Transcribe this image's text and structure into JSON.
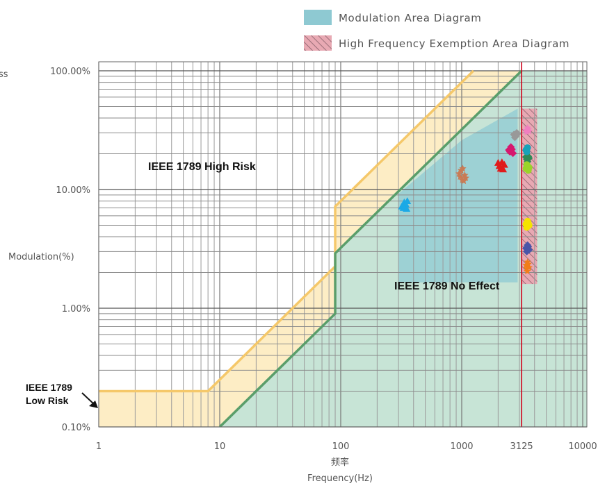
{
  "chart_data": {
    "type": "scatter",
    "xscale": "log",
    "yscale": "log",
    "xlim": [
      1,
      20000
    ],
    "ylim": [
      0.1,
      100
    ],
    "grid": true,
    "xlabel": "频率",
    "xlabel_en": "Frequency(Hz)",
    "ylabel": "Modulation(%)",
    "x_ticks": [
      {
        "value": 1,
        "label": "1"
      },
      {
        "value": 10,
        "label": "10"
      },
      {
        "value": 100,
        "label": "100"
      },
      {
        "value": 1000,
        "label": "1000"
      },
      {
        "value": 3125,
        "label": "3125",
        "color": "#d0021b"
      },
      {
        "value": 10000,
        "label": "10000"
      }
    ],
    "y_ticks": [
      {
        "value": 0.1,
        "label": "0.10%"
      },
      {
        "value": 1,
        "label": "1.00%"
      },
      {
        "value": 10,
        "label": "10.00%"
      },
      {
        "value": 100,
        "label": "100.00%"
      }
    ],
    "legend": [
      {
        "label": "Modulation Area Diagram",
        "color": "#8ec9d2",
        "style": "solid"
      },
      {
        "label": "High Frequency Exemption Area Diagram",
        "color": "#e8a9b3",
        "style": "hatched"
      }
    ],
    "legend_position": "top-right",
    "annotations": {
      "high_risk": "IEEE 1789 High Risk",
      "no_effect": "IEEE 1789 No Effect",
      "low_risk_line1": "IEEE 1789",
      "low_risk_line2": "Low Risk",
      "cut_top_right": "ss"
    },
    "boundaries": {
      "low_risk_line": {
        "color": "#f5c86a",
        "points": [
          [
            1,
            0.2
          ],
          [
            8,
            0.2
          ],
          [
            90,
            2.25
          ],
          [
            90,
            7.2
          ],
          [
            1250,
            100
          ]
        ]
      },
      "no_effect_line": {
        "color": "#5a9e6a",
        "points": [
          [
            10,
            0.1
          ],
          [
            90,
            0.9
          ],
          [
            90,
            2.9
          ],
          [
            3125,
            100
          ]
        ]
      },
      "exemption_frequency": {
        "value": 3125,
        "color": "#d0021b"
      }
    },
    "series": [
      {
        "color": "#1ba9e6",
        "marker": "triangle",
        "points": [
          [
            320,
            7.2
          ],
          [
            335,
            7.8
          ],
          [
            345,
            7.5
          ],
          [
            355,
            8.0
          ],
          [
            330,
            7.0
          ],
          [
            350,
            6.9
          ]
        ]
      },
      {
        "color": "#c97b55",
        "marker": "star",
        "points": [
          [
            970,
            12.8
          ],
          [
            1010,
            12.0
          ],
          [
            1060,
            13.2
          ],
          [
            990,
            14.5
          ],
          [
            1040,
            11.8
          ],
          [
            950,
            13.6
          ],
          [
            1020,
            15.0
          ],
          [
            1080,
            12.5
          ]
        ]
      },
      {
        "color": "#e01b1b",
        "marker": "triangle",
        "points": [
          [
            2050,
            15.8
          ],
          [
            2150,
            17.0
          ],
          [
            2250,
            16.2
          ],
          [
            2100,
            15.0
          ],
          [
            2200,
            14.8
          ],
          [
            2000,
            16.8
          ]
        ]
      },
      {
        "color": "#d6176e",
        "marker": "diamond",
        "points": [
          [
            2500,
            20.8
          ],
          [
            2600,
            21.8
          ],
          [
            2550,
            22.8
          ],
          [
            2650,
            20.2
          ],
          [
            2450,
            21.5
          ]
        ]
      },
      {
        "color": "#999999",
        "marker": "diamond",
        "points": [
          [
            2700,
            29.0
          ],
          [
            2800,
            28.2
          ],
          [
            2900,
            29.5
          ],
          [
            2750,
            27.5
          ],
          [
            2850,
            30.0
          ]
        ]
      },
      {
        "color": "#f07fc0",
        "marker": "star",
        "points": [
          [
            3400,
            31.5
          ],
          [
            3500,
            33.0
          ],
          [
            3450,
            30.5
          ],
          [
            3550,
            32.0
          ],
          [
            3600,
            31.0
          ]
        ]
      },
      {
        "color": "#2e8b57",
        "marker": "diamond",
        "points": [
          [
            3450,
            18.0
          ],
          [
            3550,
            19.0
          ],
          [
            3500,
            17.2
          ],
          [
            3600,
            18.4
          ],
          [
            3400,
            18.8
          ]
        ]
      },
      {
        "color": "#17a2b8",
        "marker": "circle",
        "points": [
          [
            3400,
            21.5
          ],
          [
            3500,
            22.5
          ],
          [
            3450,
            20.8
          ]
        ]
      },
      {
        "color": "#9ad32a",
        "marker": "circle",
        "points": [
          [
            3400,
            15.0
          ],
          [
            3500,
            15.8
          ],
          [
            3550,
            14.5
          ],
          [
            3450,
            16.2
          ],
          [
            3600,
            15.3
          ]
        ]
      },
      {
        "color": "#f5e400",
        "marker": "circle",
        "points": [
          [
            3400,
            5.1
          ],
          [
            3500,
            5.4
          ],
          [
            3450,
            4.8
          ],
          [
            3550,
            5.2
          ],
          [
            3600,
            5.0
          ]
        ]
      },
      {
        "color": "#4a55a8",
        "marker": "diamond",
        "points": [
          [
            3400,
            3.2
          ],
          [
            3500,
            3.4
          ],
          [
            3450,
            3.0
          ],
          [
            3550,
            3.3
          ],
          [
            3600,
            3.1
          ]
        ]
      },
      {
        "color": "#f07d1a",
        "marker": "star",
        "points": [
          [
            3400,
            2.3
          ],
          [
            3500,
            2.45
          ],
          [
            3450,
            2.15
          ],
          [
            3550,
            2.35
          ],
          [
            3600,
            2.2
          ],
          [
            3480,
            2.05
          ]
        ]
      }
    ]
  }
}
